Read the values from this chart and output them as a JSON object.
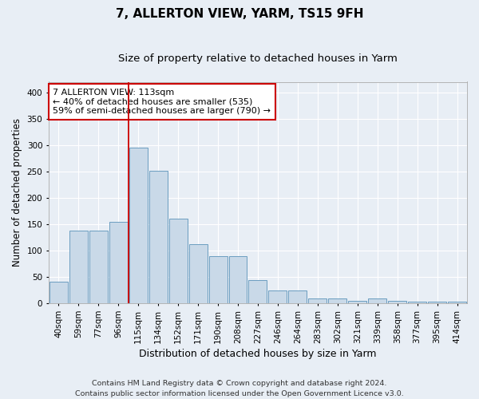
{
  "title": "7, ALLERTON VIEW, YARM, TS15 9FH",
  "subtitle": "Size of property relative to detached houses in Yarm",
  "xlabel": "Distribution of detached houses by size in Yarm",
  "ylabel": "Number of detached properties",
  "categories": [
    "40sqm",
    "59sqm",
    "77sqm",
    "96sqm",
    "115sqm",
    "134sqm",
    "152sqm",
    "171sqm",
    "190sqm",
    "208sqm",
    "227sqm",
    "246sqm",
    "264sqm",
    "283sqm",
    "302sqm",
    "321sqm",
    "339sqm",
    "358sqm",
    "377sqm",
    "395sqm",
    "414sqm"
  ],
  "values": [
    41,
    138,
    138,
    155,
    295,
    252,
    160,
    112,
    90,
    90,
    45,
    25,
    25,
    10,
    10,
    5,
    10,
    5,
    3,
    3,
    3
  ],
  "bar_color": "#c9d9e8",
  "bar_edge_color": "#6b9dc0",
  "background_color": "#e8eef5",
  "grid_color": "#ffffff",
  "annotation_line1": "7 ALLERTON VIEW: 113sqm",
  "annotation_line2": "← 40% of detached houses are smaller (535)",
  "annotation_line3": "59% of semi-detached houses are larger (790) →",
  "annotation_box_color": "#ffffff",
  "annotation_box_edge_color": "#cc0000",
  "vline_color": "#cc0000",
  "vline_x": 3.5,
  "ylim": [
    0,
    420
  ],
  "yticks": [
    0,
    50,
    100,
    150,
    200,
    250,
    300,
    350,
    400
  ],
  "footnote1": "Contains HM Land Registry data © Crown copyright and database right 2024.",
  "footnote2": "Contains public sector information licensed under the Open Government Licence v3.0.",
  "title_fontsize": 11,
  "subtitle_fontsize": 9.5,
  "xlabel_fontsize": 9,
  "ylabel_fontsize": 8.5,
  "tick_fontsize": 7.5,
  "annotation_fontsize": 8,
  "footnote_fontsize": 6.8
}
